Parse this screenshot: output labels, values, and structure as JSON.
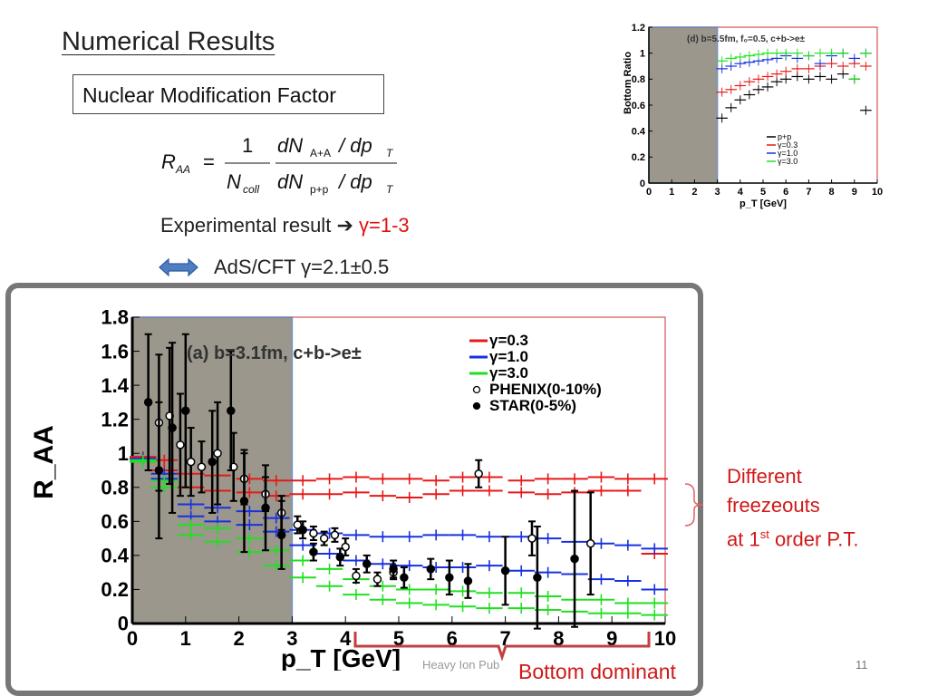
{
  "slide": {
    "title": "Numerical Results",
    "box_label": "Nuclear Modification Factor",
    "experimental_text": "Experimental result",
    "gamma_range": "γ=1-3",
    "ads_text": "AdS/CFT γ=2.1±0.5",
    "annotation_lines": [
      "Different",
      "freezeouts",
      "at 1",
      "st",
      " order P.T."
    ],
    "bottom_label": "Bottom dominant",
    "footer": "Heavy Ion Pub",
    "page_number": "11"
  },
  "formula": {
    "lhs": "R",
    "lhs_sub": "AA",
    "one": "1",
    "ncoll": "N",
    "ncoll_sub": "coll",
    "num": "dN",
    "num_sub": "A+A",
    "num_tail": "/ dp",
    "num_tail_sub": "T",
    "den": "dN",
    "den_sub": "p+p",
    "den_tail": "/ dp",
    "den_tail_sub": "T"
  },
  "colors": {
    "red": "#e81818",
    "blue": "#1830e0",
    "green": "#20e020",
    "black": "#000000",
    "annot_red": "#d01818",
    "shade": "#8a8578"
  },
  "chart_data": [
    {
      "id": "main",
      "type": "scatter",
      "title": "(a) b=3.1fm, c+b->e±",
      "xlabel": "p_T [GeV]",
      "ylabel": "R_AA",
      "xlim": [
        0,
        10
      ],
      "ylim": [
        0,
        1.8
      ],
      "xticks": [
        "0",
        "1",
        "2",
        "3",
        "4",
        "5",
        "6",
        "7",
        "8",
        "9",
        "10"
      ],
      "yticks": [
        "0",
        "0.2",
        "0.4",
        "0.6",
        "0.8",
        "1",
        "1.2",
        "1.4",
        "1.6",
        "1.8"
      ],
      "legend": [
        "γ=0.3",
        "γ=1.0",
        "γ=3.0",
        "PHENIX(0-10%)",
        "STAR(0-5%)"
      ],
      "legend_position": "top-right",
      "shaded_region": [
        0,
        3
      ],
      "series": [
        {
          "name": "γ=0.3 (upper)",
          "color": "red",
          "x": [
            0.2,
            0.6,
            1.1,
            1.6,
            2.2,
            2.7,
            3.2,
            3.7,
            4.2,
            4.7,
            5.2,
            5.7,
            6.2,
            6.7,
            7.3,
            7.8,
            8.3,
            8.8,
            9.3,
            9.8
          ],
          "y": [
            0.98,
            0.96,
            0.88,
            0.87,
            0.85,
            0.84,
            0.84,
            0.85,
            0.86,
            0.85,
            0.85,
            0.84,
            0.86,
            0.86,
            0.84,
            0.85,
            0.85,
            0.86,
            0.85,
            0.85
          ]
        },
        {
          "name": "γ=0.3 (lower)",
          "color": "red",
          "x": [
            0.2,
            0.6,
            1.1,
            1.6,
            2.2,
            2.7,
            3.2,
            3.7,
            4.2,
            4.7,
            5.2,
            5.7,
            6.2,
            6.7,
            7.3,
            7.8,
            8.3,
            8.8,
            9.3,
            9.8
          ],
          "y": [
            0.97,
            0.9,
            0.8,
            0.78,
            0.77,
            0.75,
            0.76,
            0.76,
            0.77,
            0.75,
            0.74,
            0.76,
            0.78,
            0.78,
            0.77,
            0.76,
            0.77,
            0.78,
            0.78,
            0.41
          ]
        },
        {
          "name": "γ=1.0 (upper)",
          "color": "blue",
          "x": [
            0.2,
            0.6,
            1.1,
            1.6,
            2.2,
            2.7,
            3.2,
            3.7,
            4.2,
            4.7,
            5.2,
            5.7,
            6.2,
            6.7,
            7.3,
            7.8,
            8.3,
            8.8,
            9.3,
            9.8
          ],
          "y": [
            0.97,
            0.88,
            0.7,
            0.68,
            0.66,
            0.62,
            0.55,
            0.53,
            0.52,
            0.51,
            0.51,
            0.52,
            0.52,
            0.51,
            0.51,
            0.5,
            0.48,
            0.47,
            0.46,
            0.44
          ]
        },
        {
          "name": "γ=1.0 (lower)",
          "color": "blue",
          "x": [
            0.2,
            0.6,
            1.1,
            1.6,
            2.2,
            2.7,
            3.2,
            3.7,
            4.2,
            4.7,
            5.2,
            5.7,
            6.2,
            6.7,
            7.3,
            7.8,
            8.3,
            8.8,
            9.3,
            9.8
          ],
          "y": [
            0.96,
            0.85,
            0.63,
            0.6,
            0.58,
            0.54,
            0.46,
            0.41,
            0.37,
            0.35,
            0.34,
            0.33,
            0.33,
            0.34,
            0.31,
            0.3,
            0.29,
            0.26,
            0.25,
            0.2
          ]
        },
        {
          "name": "γ=3.0 (upper)",
          "color": "green",
          "x": [
            0.2,
            0.6,
            1.1,
            1.6,
            2.2,
            2.7,
            3.2,
            3.7,
            4.2,
            4.7,
            5.2,
            5.7,
            6.2,
            6.7,
            7.3,
            7.8,
            8.3,
            8.8,
            9.3,
            9.8
          ],
          "y": [
            0.96,
            0.84,
            0.58,
            0.56,
            0.5,
            0.43,
            0.37,
            0.32,
            0.26,
            0.22,
            0.2,
            0.2,
            0.19,
            0.18,
            0.18,
            0.16,
            0.14,
            0.14,
            0.12,
            0.12
          ]
        },
        {
          "name": "γ=3.0 (lower)",
          "color": "green",
          "x": [
            0.2,
            0.6,
            1.1,
            1.6,
            2.2,
            2.7,
            3.2,
            3.7,
            4.2,
            4.7,
            5.2,
            5.7,
            6.2,
            6.7,
            7.3,
            7.8,
            8.3,
            8.8,
            9.3,
            9.8
          ],
          "y": [
            0.95,
            0.8,
            0.52,
            0.48,
            0.42,
            0.34,
            0.27,
            0.22,
            0.17,
            0.14,
            0.12,
            0.11,
            0.1,
            0.09,
            0.09,
            0.08,
            0.07,
            0.06,
            0.06,
            0.05
          ]
        }
      ],
      "phenix": {
        "x": [
          0.5,
          0.7,
          0.9,
          1.1,
          1.3,
          1.6,
          1.9,
          2.1,
          2.5,
          2.8,
          3.1,
          3.4,
          3.6,
          3.8,
          4.0,
          4.2,
          4.6,
          4.9,
          6.5,
          7.5,
          8.6
        ],
        "y": [
          1.18,
          1.22,
          1.05,
          0.95,
          0.92,
          1.0,
          0.92,
          0.85,
          0.76,
          0.65,
          0.58,
          0.53,
          0.5,
          0.52,
          0.45,
          0.28,
          0.26,
          0.3,
          0.88,
          0.5,
          0.47
        ],
        "err": [
          0.4,
          0.4,
          0.3,
          0.2,
          0.15,
          0.3,
          0.2,
          0.15,
          0.1,
          0.1,
          0.05,
          0.04,
          0.04,
          0.04,
          0.05,
          0.04,
          0.04,
          0.04,
          0.08,
          0.1,
          0.3
        ]
      },
      "star": {
        "x": [
          0.3,
          0.5,
          0.75,
          1.0,
          1.5,
          1.85,
          2.1,
          2.5,
          2.8,
          3.2,
          3.4,
          3.9,
          4.4,
          4.9,
          5.1,
          5.6,
          5.95,
          6.3,
          7.0,
          7.6,
          8.3
        ],
        "y": [
          1.3,
          0.9,
          1.15,
          1.25,
          0.95,
          1.25,
          0.72,
          0.68,
          0.52,
          0.55,
          0.42,
          0.39,
          0.35,
          0.32,
          0.27,
          0.32,
          0.27,
          0.25,
          0.31,
          0.27,
          0.38
        ],
        "err": [
          0.4,
          0.4,
          0.5,
          0.45,
          0.3,
          0.35,
          0.3,
          0.25,
          0.2,
          0.05,
          0.05,
          0.05,
          0.05,
          0.05,
          0.06,
          0.06,
          0.1,
          0.1,
          0.2,
          0.3,
          0.4
        ]
      }
    },
    {
      "id": "inset",
      "type": "scatter",
      "title": "(d) b=5.5fm, f₀=0.5, c+b->e±",
      "xlabel": "p_T [GeV]",
      "ylabel": "Bottom Ratio",
      "xlim": [
        0,
        10
      ],
      "ylim": [
        0,
        1.2
      ],
      "xticks": [
        "0",
        "1",
        "2",
        "3",
        "4",
        "5",
        "6",
        "7",
        "8",
        "9",
        "10"
      ],
      "yticks": [
        "0",
        "0.2",
        "0.4",
        "0.6",
        "0.8",
        "1",
        "1.2"
      ],
      "legend": [
        "p+p",
        "γ=0.3",
        "γ=1.0",
        "γ=3.0"
      ],
      "legend_position": "middle-right",
      "shaded_region": [
        0,
        3
      ],
      "series": [
        {
          "name": "p+p",
          "color": "black",
          "x": [
            3.2,
            3.6,
            4.0,
            4.4,
            4.8,
            5.2,
            5.6,
            6.0,
            6.5,
            7.0,
            7.5,
            8.0,
            8.5,
            9.0,
            9.5
          ],
          "y": [
            0.5,
            0.58,
            0.64,
            0.68,
            0.72,
            0.74,
            0.78,
            0.8,
            0.82,
            0.8,
            0.82,
            0.8,
            0.84,
            0.8,
            0.56
          ]
        },
        {
          "name": "γ=0.3",
          "color": "red",
          "x": [
            3.2,
            3.6,
            4.0,
            4.4,
            4.8,
            5.2,
            5.6,
            6.0,
            6.5,
            7.0,
            7.5,
            8.0,
            8.5,
            9.0,
            9.5
          ],
          "y": [
            0.7,
            0.72,
            0.75,
            0.78,
            0.8,
            0.82,
            0.84,
            0.86,
            0.88,
            0.88,
            0.9,
            0.92,
            0.9,
            0.92,
            0.9
          ]
        },
        {
          "name": "γ=1.0",
          "color": "blue",
          "x": [
            3.2,
            3.6,
            4.0,
            4.4,
            4.8,
            5.2,
            5.6,
            6.0,
            6.5,
            7.0,
            7.5,
            8.0,
            8.5,
            9.0,
            9.5
          ],
          "y": [
            0.88,
            0.9,
            0.92,
            0.93,
            0.94,
            0.95,
            0.96,
            0.98,
            0.96,
            0.98,
            0.92,
            0.98,
            1.0,
            0.96,
            1.0
          ]
        },
        {
          "name": "γ=3.0",
          "color": "green",
          "x": [
            3.2,
            3.6,
            4.0,
            4.4,
            4.8,
            5.2,
            5.6,
            6.0,
            6.5,
            7.0,
            7.5,
            8.0,
            8.5,
            9.0,
            9.5
          ],
          "y": [
            0.94,
            0.96,
            0.97,
            0.98,
            0.99,
            1.0,
            1.0,
            1.0,
            1.0,
            0.98,
            1.0,
            1.0,
            1.0,
            0.8,
            1.0
          ]
        }
      ]
    }
  ]
}
